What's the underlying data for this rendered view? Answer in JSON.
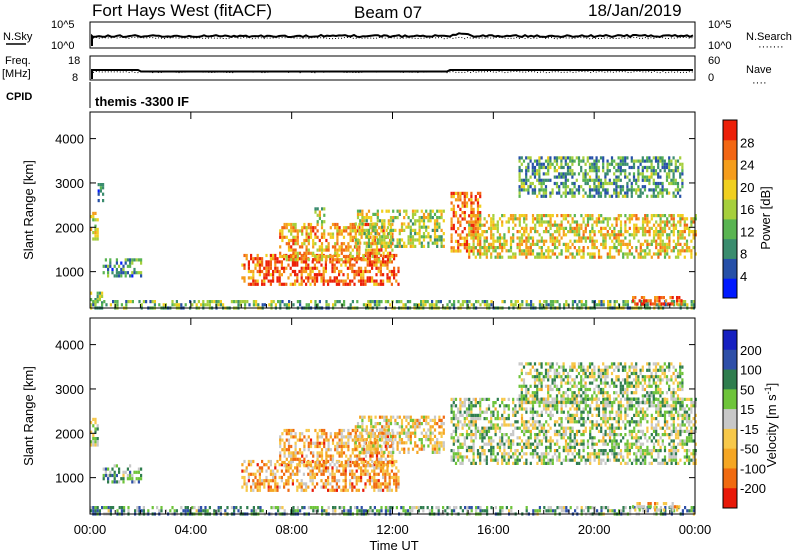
{
  "header": {
    "station": "Fort Hays West (fitACF)",
    "beam": "Beam 07",
    "date": "18/Jan/2019"
  },
  "status_panels": {
    "nsky": {
      "label": "N.Sky",
      "left_ticks": [
        "10^5",
        "10^0"
      ],
      "right_ticks": [
        "10^5",
        "10^0"
      ],
      "right_label": "N.Search",
      "right_legend": "·······"
    },
    "freq": {
      "label": "Freq.",
      "unit": "[MHz]",
      "left_ticks": [
        "18",
        "8"
      ],
      "right_ticks": [
        "60",
        "0"
      ],
      "right_label": "Nave",
      "right_legend": "····"
    },
    "cpid": {
      "label": "CPID",
      "program": "themis -3300 IF"
    }
  },
  "chart_data": [
    {
      "type": "heatmap",
      "name": "power",
      "ylabel": "Slant Range [km]",
      "ylim": [
        180,
        4600
      ],
      "yticks": [
        "1000",
        "2000",
        "3000",
        "4000"
      ],
      "xlim_hours": [
        0,
        24
      ],
      "colorbar": {
        "label": "Power [dB]",
        "ticks": [
          "4",
          "8",
          "12",
          "16",
          "20",
          "24",
          "28"
        ],
        "range": [
          0,
          32
        ],
        "colors": [
          "#0019ff",
          "#2650a8",
          "#3a8c6e",
          "#59b451",
          "#a6cf3c",
          "#f0cf1f",
          "#f59d1c",
          "#f26613",
          "#ec1f08"
        ]
      },
      "regions": [
        {
          "t0": 0.0,
          "t1": 0.3,
          "r0": 1750,
          "r1": 2350,
          "level": 0.55
        },
        {
          "t0": 0.3,
          "t1": 0.55,
          "r0": 2600,
          "r1": 3000,
          "level": 0.3
        },
        {
          "t0": 0.5,
          "t1": 2.0,
          "r0": 900,
          "r1": 1300,
          "level": 0.3
        },
        {
          "t0": 0.0,
          "t1": 0.5,
          "r0": 300,
          "r1": 550,
          "level": 0.45
        },
        {
          "t0": 6.0,
          "t1": 12.2,
          "r0": 700,
          "r1": 1400,
          "level": 0.85
        },
        {
          "t0": 7.5,
          "t1": 12.0,
          "r0": 1300,
          "r1": 2100,
          "level": 0.7
        },
        {
          "t0": 10.5,
          "t1": 14.0,
          "r0": 1600,
          "r1": 2400,
          "level": 0.5
        },
        {
          "t0": 8.9,
          "t1": 9.3,
          "r0": 2150,
          "r1": 2450,
          "level": 0.5
        },
        {
          "t0": 14.3,
          "t1": 15.5,
          "r0": 1500,
          "r1": 2800,
          "level": 0.8
        },
        {
          "t0": 15.0,
          "t1": 24.0,
          "r0": 1300,
          "r1": 2300,
          "level": 0.6
        },
        {
          "t0": 17.0,
          "t1": 23.5,
          "r0": 2700,
          "r1": 3600,
          "level": 0.35
        },
        {
          "t0": 0.0,
          "t1": 24.0,
          "r0": 190,
          "r1": 360,
          "level": 0.4
        },
        {
          "t0": 21.5,
          "t1": 23.5,
          "r0": 300,
          "r1": 450,
          "level": 0.9
        }
      ]
    },
    {
      "type": "heatmap",
      "name": "velocity",
      "ylabel": "Slant Range [km]",
      "ylim": [
        180,
        4600
      ],
      "yticks": [
        "1000",
        "2000",
        "3000",
        "4000"
      ],
      "xlim_hours": [
        0,
        24
      ],
      "xticks": [
        "00:00",
        "04:00",
        "08:00",
        "12:00",
        "16:00",
        "20:00",
        "00:00"
      ],
      "xlabel": "Time UT",
      "colorbar": {
        "label": "Velocity [m s-1]",
        "ticks": [
          "200",
          "100",
          "50",
          "15",
          "-15",
          "-50",
          "-100",
          "-200"
        ],
        "colors": [
          "#1620c0",
          "#2e4fa8",
          "#2f7d4e",
          "#6ec43a",
          "#c8c8c8",
          "#f7c84a",
          "#f5a623",
          "#f06a10",
          "#e81808"
        ]
      },
      "regions": [
        {
          "t0": 0.0,
          "t1": 0.3,
          "r0": 1750,
          "r1": 2350,
          "level": 0.45
        },
        {
          "t0": 0.5,
          "t1": 2.0,
          "r0": 900,
          "r1": 1300,
          "level": 0.35
        },
        {
          "t0": 6.0,
          "t1": 12.2,
          "r0": 700,
          "r1": 1400,
          "level": 0.7
        },
        {
          "t0": 7.5,
          "t1": 12.0,
          "r0": 1300,
          "r1": 2100,
          "level": 0.68
        },
        {
          "t0": 10.5,
          "t1": 14.0,
          "r0": 1600,
          "r1": 2400,
          "level": 0.6
        },
        {
          "t0": 14.3,
          "t1": 24.0,
          "r0": 1300,
          "r1": 2800,
          "level": 0.45
        },
        {
          "t0": 17.0,
          "t1": 23.5,
          "r0": 2700,
          "r1": 3600,
          "level": 0.45
        },
        {
          "t0": 0.0,
          "t1": 24.0,
          "r0": 190,
          "r1": 360,
          "level": 0.35
        },
        {
          "t0": 21.5,
          "t1": 23.5,
          "r0": 300,
          "r1": 450,
          "level": 0.65
        }
      ]
    }
  ]
}
